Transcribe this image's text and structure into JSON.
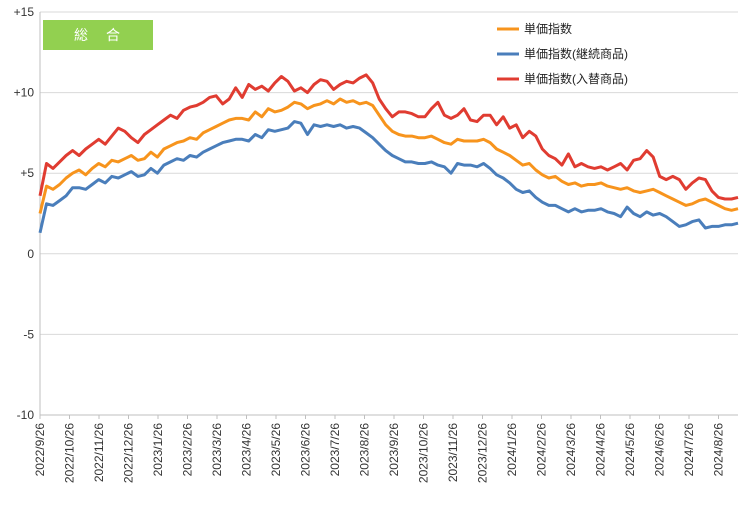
{
  "chart_data": {
    "type": "line",
    "title": "",
    "xlabel": "",
    "ylabel": "",
    "badge": {
      "label": "総　合",
      "color": "#92d050"
    },
    "ylim": [
      -10,
      15
    ],
    "yticks": [
      {
        "value": 15,
        "label": "+15"
      },
      {
        "value": 10,
        "label": "+10"
      },
      {
        "value": 5,
        "label": "+5"
      },
      {
        "value": 0,
        "label": "0"
      },
      {
        "value": -5,
        "label": "-5"
      },
      {
        "value": -10,
        "label": "-10"
      }
    ],
    "x_labels": [
      "2022/9/26",
      "2022/10/26",
      "2022/11/26",
      "2022/12/26",
      "2023/1/26",
      "2023/2/26",
      "2023/3/26",
      "2023/4/26",
      "2023/5/26",
      "2023/6/26",
      "2023/7/26",
      "2023/8/26",
      "2023/9/26",
      "2023/10/26",
      "2023/11/26",
      "2023/12/26",
      "2024/1/26",
      "2024/2/26",
      "2024/3/26",
      "2024/4/26",
      "2024/5/26",
      "2024/6/26",
      "2024/7/26",
      "2024/8/26"
    ],
    "grid": true,
    "legend": "top-right",
    "series": [
      {
        "name": "単価指数",
        "color": "#f7941d",
        "values": [
          2.5,
          4.2,
          4.0,
          4.3,
          4.7,
          5.0,
          5.2,
          4.9,
          5.3,
          5.6,
          5.4,
          5.8,
          5.7,
          5.9,
          6.1,
          5.8,
          5.9,
          6.3,
          6.0,
          6.5,
          6.7,
          6.9,
          7.0,
          7.2,
          7.1,
          7.5,
          7.7,
          7.9,
          8.1,
          8.3,
          8.4,
          8.4,
          8.3,
          8.8,
          8.5,
          9.0,
          8.8,
          8.9,
          9.1,
          9.4,
          9.3,
          9.0,
          9.2,
          9.3,
          9.5,
          9.3,
          9.6,
          9.4,
          9.5,
          9.3,
          9.4,
          9.2,
          8.6,
          8.0,
          7.6,
          7.4,
          7.3,
          7.3,
          7.2,
          7.2,
          7.3,
          7.1,
          6.9,
          6.8,
          7.1,
          7.0,
          7.0,
          7.0,
          7.1,
          6.9,
          6.5,
          6.3,
          6.1,
          5.8,
          5.5,
          5.6,
          5.2,
          4.9,
          4.7,
          4.8,
          4.5,
          4.3,
          4.4,
          4.2,
          4.3,
          4.3,
          4.4,
          4.2,
          4.1,
          4.0,
          4.1,
          3.9,
          3.8,
          3.9,
          4.0,
          3.8,
          3.6,
          3.4,
          3.2,
          3.0,
          3.1,
          3.3,
          3.4,
          3.2,
          3.0,
          2.8,
          2.7,
          2.8
        ],
        "legend_label": "単価指数"
      },
      {
        "name": "単価指数(継続商品)",
        "color": "#4a7ebb",
        "values": [
          1.3,
          3.1,
          3.0,
          3.3,
          3.6,
          4.1,
          4.1,
          4.0,
          4.3,
          4.6,
          4.4,
          4.8,
          4.7,
          4.9,
          5.1,
          4.8,
          4.9,
          5.3,
          5.0,
          5.5,
          5.7,
          5.9,
          5.8,
          6.1,
          6.0,
          6.3,
          6.5,
          6.7,
          6.9,
          7.0,
          7.1,
          7.1,
          7.0,
          7.4,
          7.2,
          7.7,
          7.6,
          7.7,
          7.8,
          8.2,
          8.1,
          7.4,
          8.0,
          7.9,
          8.0,
          7.9,
          8.0,
          7.8,
          7.9,
          7.8,
          7.5,
          7.2,
          6.8,
          6.4,
          6.1,
          5.9,
          5.7,
          5.7,
          5.6,
          5.6,
          5.7,
          5.5,
          5.4,
          5.0,
          5.6,
          5.5,
          5.5,
          5.4,
          5.6,
          5.3,
          4.9,
          4.7,
          4.4,
          4.0,
          3.8,
          3.9,
          3.5,
          3.2,
          3.0,
          3.0,
          2.8,
          2.6,
          2.8,
          2.6,
          2.7,
          2.7,
          2.8,
          2.6,
          2.5,
          2.3,
          2.9,
          2.5,
          2.3,
          2.6,
          2.4,
          2.5,
          2.3,
          2.0,
          1.7,
          1.8,
          2.0,
          2.1,
          1.6,
          1.7,
          1.7,
          1.8,
          1.8,
          1.9
        ],
        "legend_label": "単価指数(継続商品)"
      },
      {
        "name": "単価指数(入替商品)",
        "color": "#e03c31",
        "values": [
          3.6,
          5.6,
          5.3,
          5.7,
          6.1,
          6.4,
          6.1,
          6.5,
          6.8,
          7.1,
          6.8,
          7.3,
          7.8,
          7.6,
          7.2,
          6.9,
          7.4,
          7.7,
          8.0,
          8.3,
          8.6,
          8.4,
          8.9,
          9.1,
          9.2,
          9.4,
          9.7,
          9.8,
          9.3,
          9.6,
          10.3,
          9.7,
          10.5,
          10.2,
          10.4,
          10.1,
          10.6,
          11.0,
          10.7,
          10.1,
          10.3,
          10.0,
          10.5,
          10.8,
          10.7,
          10.2,
          10.5,
          10.7,
          10.6,
          10.9,
          11.1,
          10.6,
          9.6,
          9.0,
          8.5,
          8.8,
          8.8,
          8.7,
          8.5,
          8.5,
          9.0,
          9.4,
          8.6,
          8.4,
          8.6,
          9.0,
          8.3,
          8.2,
          8.6,
          8.6,
          8.0,
          8.5,
          7.8,
          8.0,
          7.2,
          7.6,
          7.3,
          6.5,
          6.1,
          5.9,
          5.5,
          6.2,
          5.4,
          5.6,
          5.4,
          5.3,
          5.4,
          5.2,
          5.4,
          5.6,
          5.2,
          5.8,
          5.9,
          6.4,
          6.0,
          4.8,
          4.6,
          4.8,
          4.6,
          4.0,
          4.4,
          4.7,
          4.6,
          3.9,
          3.5,
          3.4,
          3.4,
          3.5
        ]
      }
    ]
  }
}
